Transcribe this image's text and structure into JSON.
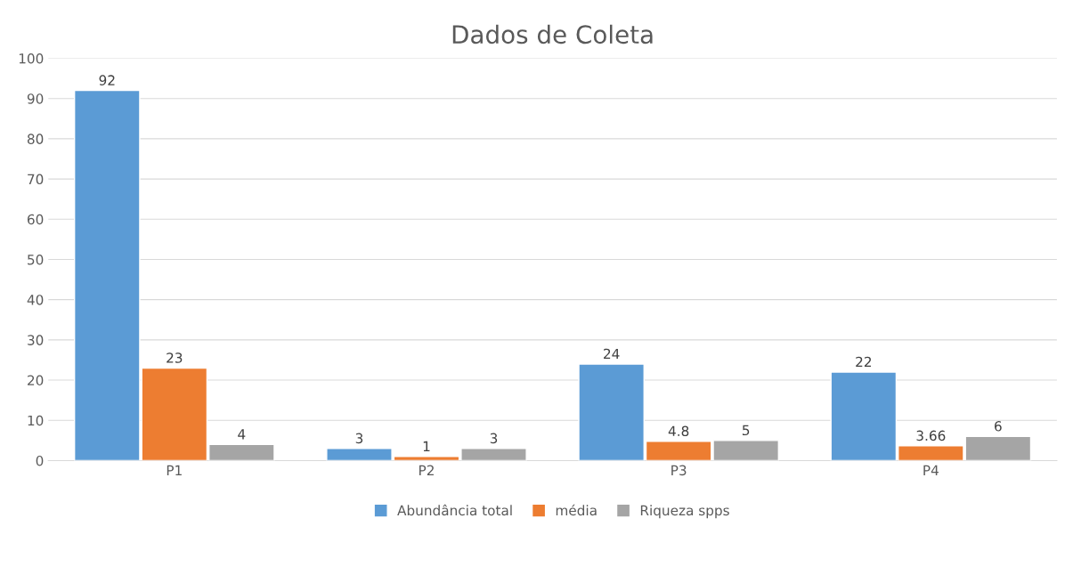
{
  "chart_data": {
    "type": "bar",
    "title": "Dados de Coleta",
    "categories": [
      "P1",
      "P2",
      "P3",
      "P4"
    ],
    "series": [
      {
        "name": "Abundância total",
        "color": "#5b9bd5",
        "values": [
          92,
          3,
          24,
          22
        ]
      },
      {
        "name": "média",
        "color": "#ed7d31",
        "values": [
          23,
          1,
          4.8,
          3.66
        ]
      },
      {
        "name": "Riqueza spps",
        "color": "#a5a5a5",
        "values": [
          4,
          3,
          5,
          6
        ]
      }
    ],
    "ylim": [
      0,
      100
    ],
    "yticks": [
      0,
      10,
      20,
      30,
      40,
      50,
      60,
      70,
      80,
      90,
      100
    ],
    "grid": "y",
    "legend": "bottom",
    "data_labels": true
  }
}
